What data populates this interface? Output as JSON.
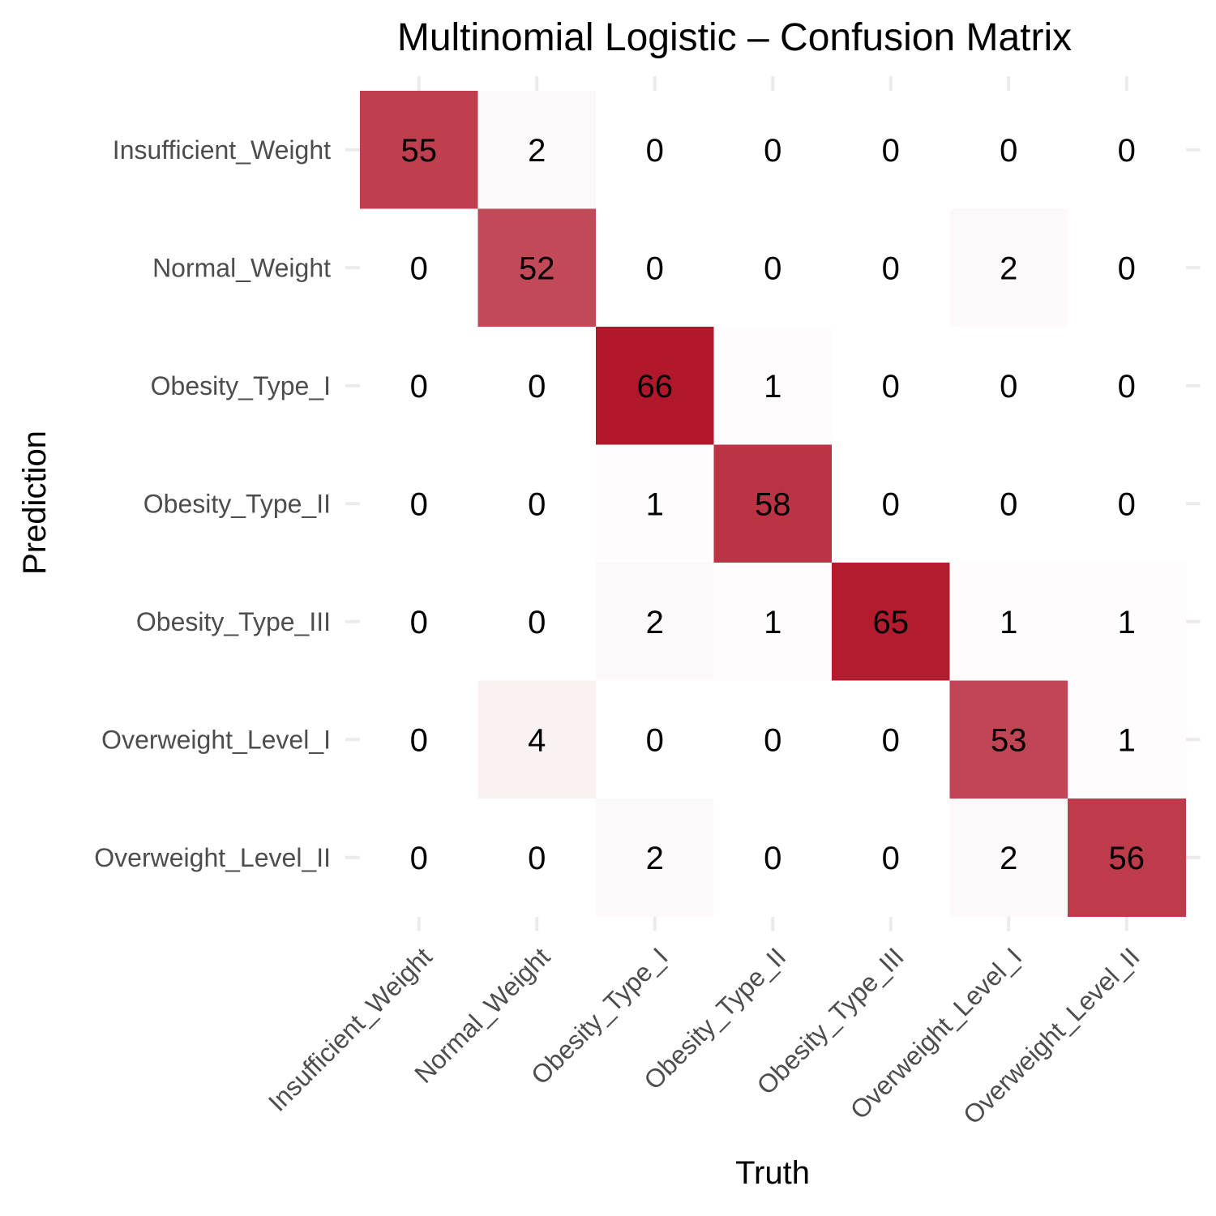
{
  "chart_data": {
    "type": "heatmap",
    "title": "Multinomial Logistic – Confusion Matrix",
    "xlabel": "Truth",
    "ylabel": "Prediction",
    "x_categories": [
      "Insufficient_Weight",
      "Normal_Weight",
      "Obesity_Type_I",
      "Obesity_Type_II",
      "Obesity_Type_III",
      "Overweight_Level_I",
      "Overweight_Level_II"
    ],
    "y_categories": [
      "Insufficient_Weight",
      "Normal_Weight",
      "Obesity_Type_I",
      "Obesity_Type_II",
      "Obesity_Type_III",
      "Overweight_Level_I",
      "Overweight_Level_II"
    ],
    "values": [
      [
        55,
        2,
        0,
        0,
        0,
        0,
        0
      ],
      [
        0,
        52,
        0,
        0,
        0,
        2,
        0
      ],
      [
        0,
        0,
        66,
        1,
        0,
        0,
        0
      ],
      [
        0,
        0,
        1,
        58,
        0,
        0,
        0
      ],
      [
        0,
        0,
        2,
        1,
        65,
        1,
        1
      ],
      [
        0,
        4,
        0,
        0,
        0,
        53,
        1
      ],
      [
        0,
        0,
        2,
        0,
        0,
        2,
        56
      ]
    ],
    "color_scale": {
      "low": "#ffffff",
      "high": "#b2182b"
    },
    "legend": "none",
    "grid": true
  }
}
